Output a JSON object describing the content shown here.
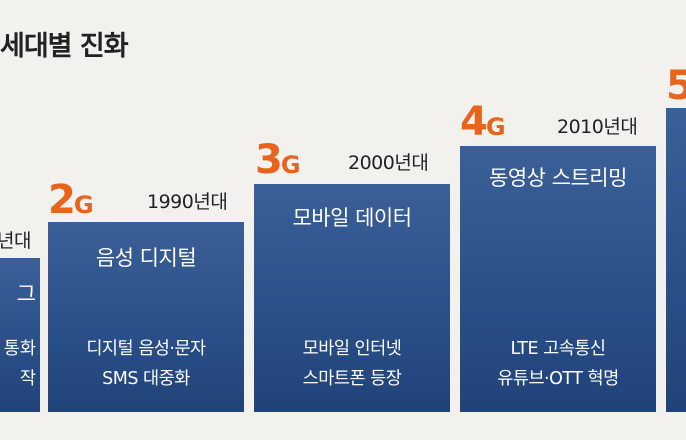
{
  "title": "세대별 진화",
  "chart_data": {
    "type": "bar",
    "generations": [
      {
        "gen": "",
        "gen_unit": "",
        "decade": "년대",
        "head": "그",
        "desc": [
          "통화",
          "작"
        ]
      },
      {
        "gen": "2",
        "gen_unit": "G",
        "decade": "1990년대",
        "head": "음성 디지털",
        "desc": [
          "디지털 음성·문자",
          "SMS 대중화"
        ]
      },
      {
        "gen": "3",
        "gen_unit": "G",
        "decade": "2000년대",
        "head": "모바일 데이터",
        "desc": [
          "모바일 인터넷",
          "스마트폰 등장"
        ]
      },
      {
        "gen": "4",
        "gen_unit": "G",
        "decade": "2010년대",
        "head": "동영상 스트리밍",
        "desc": [
          "LTE 고속통신",
          "유튜브·OTT 혁명"
        ]
      },
      {
        "gen": "5",
        "gen_unit": "",
        "decade": "",
        "head": "",
        "desc": [
          "",
          ""
        ]
      }
    ]
  },
  "colors": {
    "accent": "#e8631b",
    "bar": "#2b4f88",
    "background": "#f3f1ee"
  }
}
